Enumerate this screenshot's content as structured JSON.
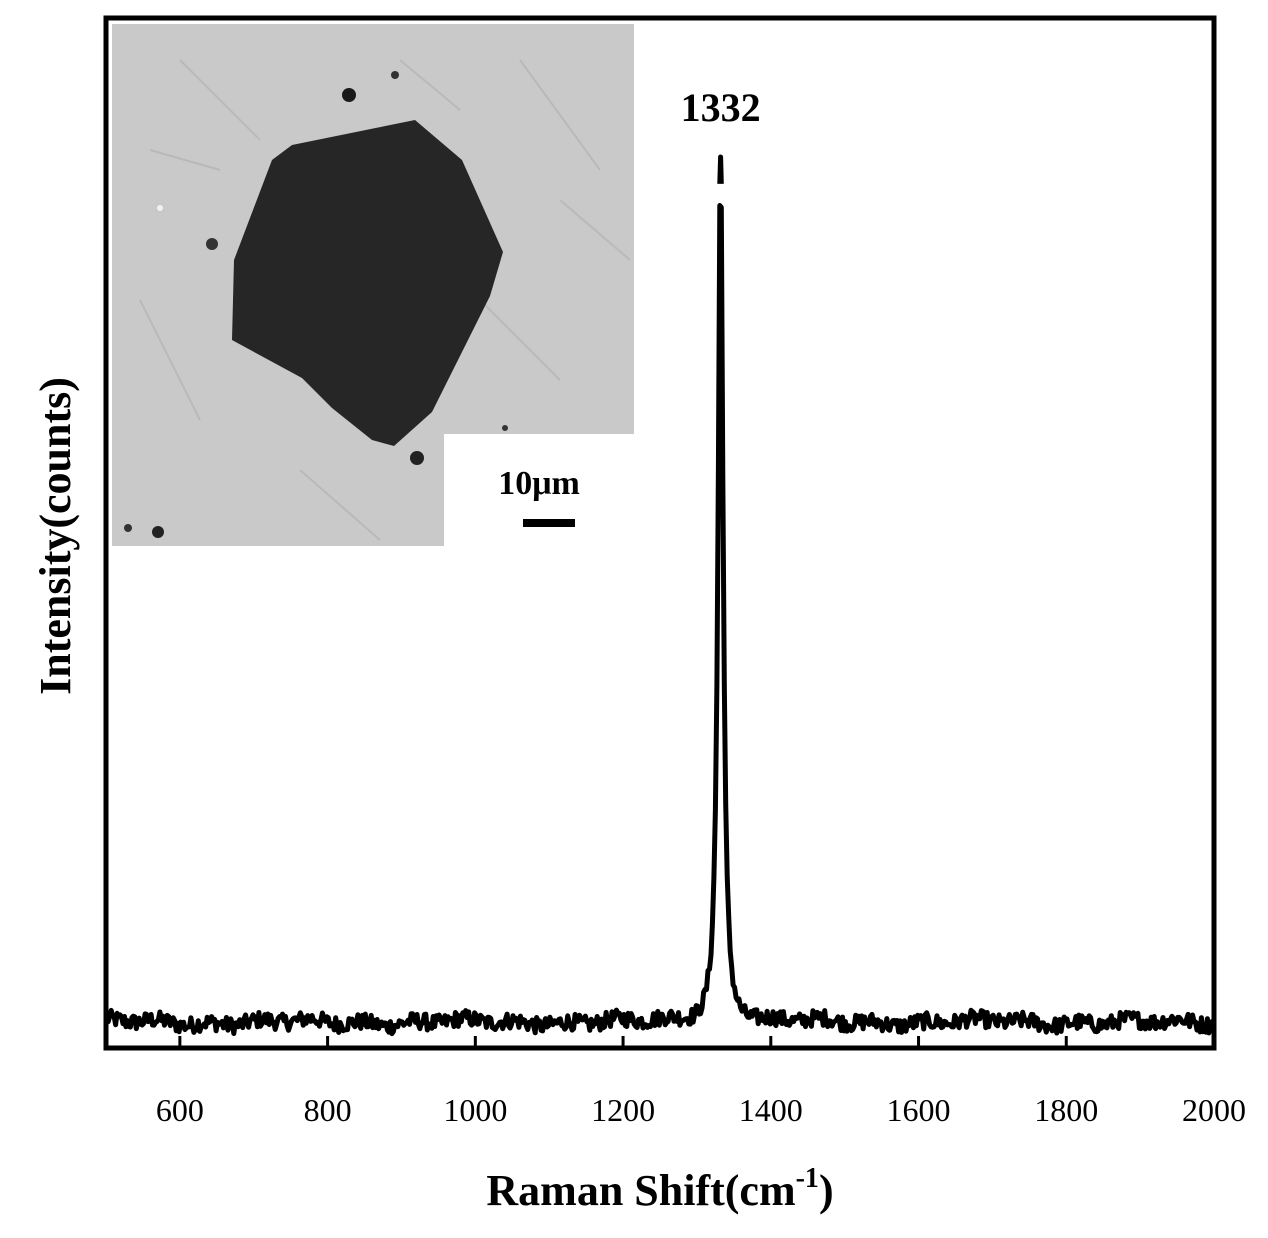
{
  "chart_data": {
    "type": "line",
    "xlabel": "Raman Shift(cm",
    "xlabel_sup": "-1",
    "xlabel_close": ")",
    "ylabel": "Intensity(counts)",
    "xlim": [
      500,
      2000
    ],
    "ylim": [
      0,
      1.0
    ],
    "x_ticks": [
      600,
      800,
      1000,
      1200,
      1400,
      1600,
      1800,
      2000
    ],
    "y_ticks_shown": false,
    "grid": false,
    "series": [
      {
        "color": "#000000",
        "baseline": 0.025,
        "noise_amplitude": 0.008,
        "peak": {
          "x": 1332,
          "y": 0.865,
          "fwhm": 8
        }
      }
    ],
    "annotations": [
      {
        "text": "1332",
        "x": 1332,
        "y": 0.9
      }
    ],
    "inset": {
      "type": "micrograph",
      "description_icon": "sem-micrograph-diamond-crystal",
      "scale_bar_label": "10μm",
      "background_color": "#c8c8c8",
      "crystal_color": "#262626"
    }
  }
}
